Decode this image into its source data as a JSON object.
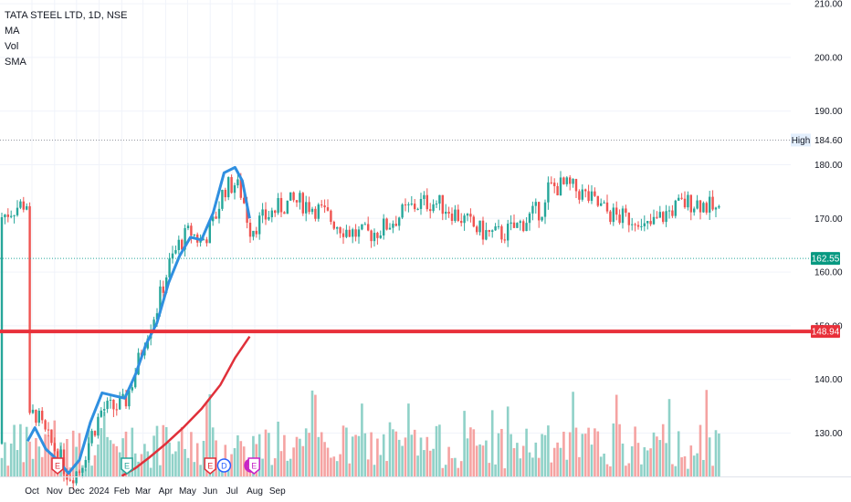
{
  "legend": {
    "symbol": "TATA STEEL LTD, 1D, NSE",
    "ma": "MA",
    "vol": "Vol",
    "sma": "SMA"
  },
  "colors": {
    "up": "#26a69a",
    "down": "#ef5350",
    "vol_up": "#8fd1c8",
    "vol_down": "#f5a3a2",
    "ma_line": "#2f8fe0",
    "sma_line": "#e0303a",
    "support_line": "#e8303a",
    "grid": "#f0f3fa",
    "axis_text": "#131722"
  },
  "chart_data": {
    "type": "candlestick",
    "ylim": [
      122,
      212
    ],
    "y_ticks": [
      130,
      140,
      150,
      160,
      170,
      180,
      190,
      200,
      210
    ],
    "y_tick_labels": [
      "130.00",
      "140.00",
      "150.00",
      "160.00",
      "170.00",
      "180.00",
      "190.00",
      "200.00",
      "210.00"
    ],
    "x_ticks": [
      "Oct",
      "Nov",
      "Dec",
      "2024",
      "Feb",
      "Mar",
      "Apr",
      "May",
      "Jun",
      "Jul",
      "Aug",
      "Sep"
    ],
    "high_label": "High",
    "high_value": 184.6,
    "last_price": 162.55,
    "last_price_label": "162.55",
    "support_level": 148.94,
    "support_label": "148.94",
    "ma_series": [
      [
        "2023-09-25",
        128.5
      ],
      [
        "2023-10-05",
        131.0
      ],
      [
        "2023-10-20",
        127.0
      ],
      [
        "2023-11-05",
        125.0
      ],
      [
        "2023-11-20",
        122.5
      ],
      [
        "2023-12-05",
        125.0
      ],
      [
        "2023-12-20",
        132.0
      ],
      [
        "2024-01-05",
        137.5
      ],
      [
        "2024-01-20",
        137.0
      ],
      [
        "2024-02-05",
        136.5
      ],
      [
        "2024-02-20",
        141.0
      ],
      [
        "2024-03-05",
        146.5
      ],
      [
        "2024-03-20",
        150.5
      ],
      [
        "2024-04-05",
        158.0
      ],
      [
        "2024-04-20",
        163.0
      ],
      [
        "2024-05-05",
        166.5
      ],
      [
        "2024-05-20",
        166.0
      ],
      [
        "2024-06-05",
        171.0
      ],
      [
        "2024-06-20",
        178.5
      ],
      [
        "2024-07-05",
        179.5
      ],
      [
        "2024-07-15",
        177.0
      ],
      [
        "2024-07-25",
        170.0
      ]
    ],
    "sma_series": [
      [
        "2024-02-01",
        122.0
      ],
      [
        "2024-02-20",
        123.5
      ],
      [
        "2024-03-10",
        125.5
      ],
      [
        "2024-04-01",
        128.0
      ],
      [
        "2024-04-25",
        131.0
      ],
      [
        "2024-05-20",
        134.5
      ],
      [
        "2024-06-15",
        139.0
      ],
      [
        "2024-07-05",
        144.0
      ],
      [
        "2024-07-25",
        148.0
      ]
    ],
    "event_markers": [
      {
        "date": "2023-11-05",
        "label": "E",
        "kind": "earnings-down"
      },
      {
        "date": "2024-02-08",
        "label": "E",
        "kind": "earnings-up"
      },
      {
        "date": "2024-06-01",
        "label": "E",
        "kind": "earnings-down"
      },
      {
        "date": "2024-06-20",
        "label": "D",
        "kind": "dividend"
      },
      {
        "date": "2024-07-27",
        "label": "⚡",
        "kind": "split"
      },
      {
        "date": "2024-07-31",
        "label": "E",
        "kind": "earnings-upcoming"
      }
    ]
  }
}
